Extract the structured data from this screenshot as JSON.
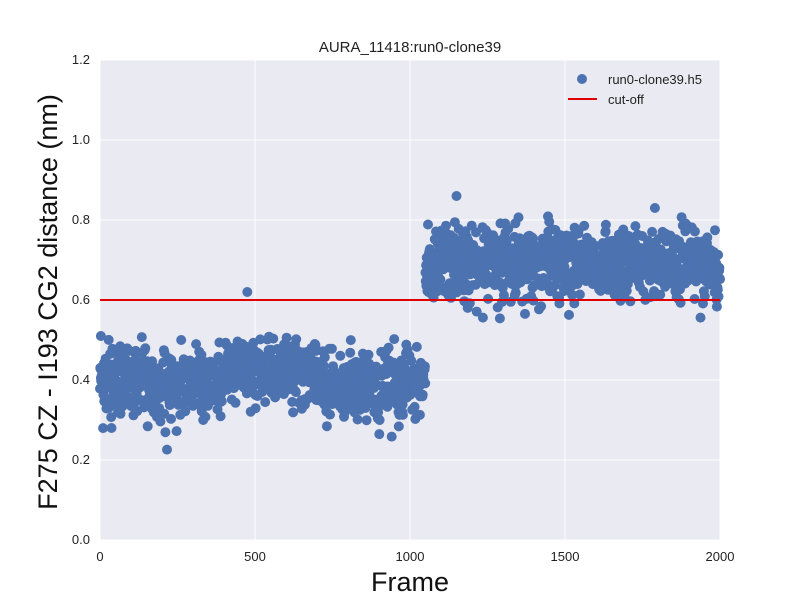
{
  "chart_data": {
    "type": "scatter",
    "title": "AURA_11418:run0-clone39",
    "xlabel": "Frame",
    "ylabel": "F275 CZ - I193 CG2 distance (nm)",
    "xlim": [
      0,
      2000
    ],
    "ylim": [
      0.0,
      1.2
    ],
    "x_ticks": [
      "0",
      "500",
      "1000",
      "1500",
      "2000"
    ],
    "y_ticks": [
      "0.0",
      "0.2",
      "0.4",
      "0.6",
      "0.8",
      "1.0",
      "1.2"
    ],
    "grid": true,
    "legend_position": "top-right",
    "series": [
      {
        "name": "run0-clone39.h5",
        "kind": "scatter",
        "color": "#4c72b0",
        "description_of_distribution": "approx. 2000 points, one per frame",
        "segments": [
          {
            "x_range": [
              0,
              1050
            ],
            "y_mean": 0.39,
            "y_spread": 0.04
          },
          {
            "x_range": [
              1050,
              2000
            ],
            "y_mean": 0.69,
            "y_spread": 0.045
          }
        ],
        "notable_points": [
          {
            "x": 3,
            "y": 0.51
          },
          {
            "x": 475,
            "y": 0.62
          },
          {
            "x": 1150,
            "y": 0.86
          },
          {
            "x": 1790,
            "y": 0.83
          },
          {
            "x": 790,
            "y": 0.32
          },
          {
            "x": 975,
            "y": 0.32
          }
        ]
      },
      {
        "name": "cut-off",
        "kind": "line",
        "color": "#e00000",
        "x": [
          0,
          2000
        ],
        "y": [
          0.6,
          0.6
        ]
      }
    ]
  },
  "colors": {
    "plot_background": "#eaeaf2",
    "grid": "#ffffff",
    "points": "#4c72b0",
    "cutoff_line": "#e00000"
  }
}
